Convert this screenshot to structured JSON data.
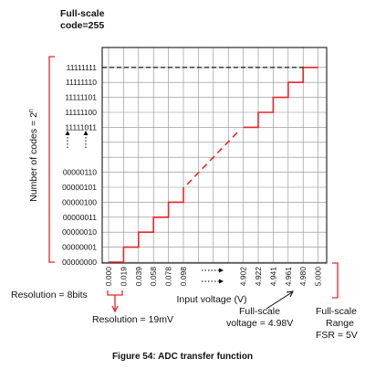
{
  "chart_data": {
    "type": "line",
    "title": "",
    "caption": "Figure 54: ADC transfer function",
    "xlabel": "Input voltage (V)",
    "ylabel": "Number of codes = 2",
    "ylabel_superscript": "n",
    "x_ticks": [
      "0.000",
      "0.019",
      "0.039",
      "0.058",
      "0.078",
      "0.098",
      "4.902",
      "4.922",
      "4.941",
      "4.961",
      "4.980",
      "5.000"
    ],
    "y_ticks": [
      "00000000",
      "00000001",
      "00000010",
      "00000011",
      "00000100",
      "00000101",
      "00000110",
      "11111011",
      "11111100",
      "11111101",
      "11111110",
      "11111111"
    ],
    "series": [
      {
        "type": "step",
        "color": "#e8262a",
        "lower_steps": [
          {
            "x_start": "0.000",
            "x_end": "0.019",
            "code": "00000000"
          },
          {
            "x_start": "0.019",
            "x_end": "0.039",
            "code": "00000001"
          },
          {
            "x_start": "0.039",
            "x_end": "0.058",
            "code": "00000010"
          },
          {
            "x_start": "0.058",
            "x_end": "0.078",
            "code": "00000011"
          },
          {
            "x_start": "0.078",
            "x_end": "0.098",
            "code": "00000100"
          },
          {
            "x_start": "0.098",
            "x_end": "0.098",
            "code": "00000101"
          }
        ],
        "upper_steps": [
          {
            "x_start": "4.902",
            "x_end": "4.922",
            "code": "11111011"
          },
          {
            "x_start": "4.922",
            "x_end": "4.941",
            "code": "11111100"
          },
          {
            "x_start": "4.941",
            "x_end": "4.961",
            "code": "11111101"
          },
          {
            "x_start": "4.961",
            "x_end": "4.980",
            "code": "11111110"
          },
          {
            "x_start": "4.980",
            "x_end": "5.000",
            "code": "11111111"
          }
        ]
      }
    ],
    "grid": true,
    "full_scale_line_color": "#000000",
    "annotations": {
      "full_scale_code_line1": "Full-scale",
      "full_scale_code_line2": "code=255",
      "resolution_bits": "Resolution = 8bits",
      "resolution_mv": "Resolution = 19mV",
      "fs_voltage_line1": "Full-scale",
      "fs_voltage_line2": "voltage = 4.98V",
      "fsr_line1": "Full-scale",
      "fsr_line2": "Range",
      "fsr_line3": "FSR = 5V"
    }
  }
}
